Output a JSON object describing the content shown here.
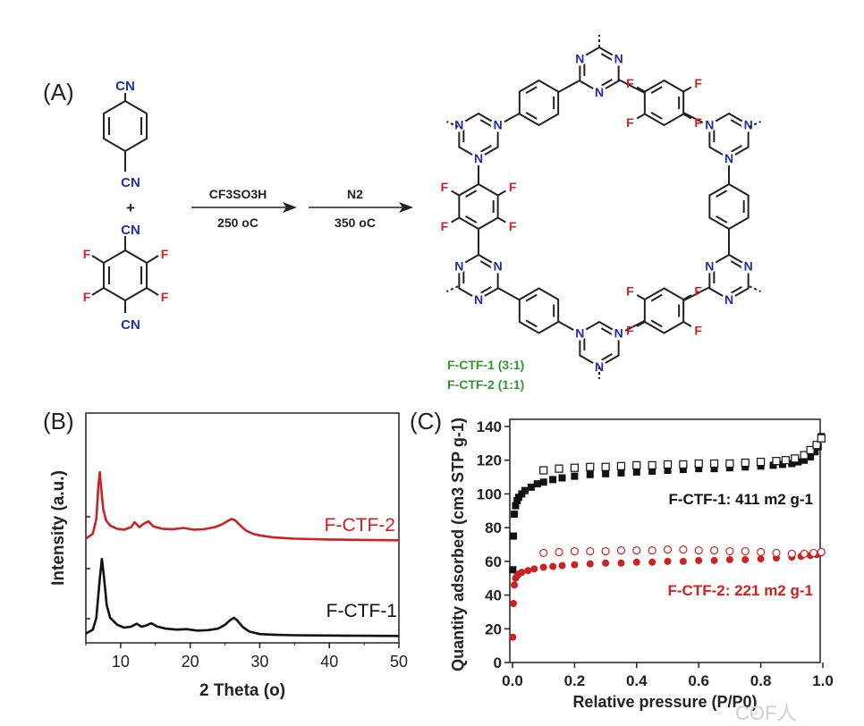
{
  "panels": {
    "a": "(A)",
    "b": "(B)",
    "c": "(C)"
  },
  "scheme": {
    "monomer1_top": "CN",
    "monomer1_bottom": "CN",
    "plus": "+",
    "monomer2_top": "CN",
    "monomer2_bottom": "CN",
    "fluorine": "F",
    "nitrogen": "N",
    "step1_reagent": "CF3SO3H",
    "step1_temp": "250 oC",
    "step2_reagent": "N2",
    "step2_temp": "350 oC",
    "product_label_1": "F-CTF-1 (3:1)",
    "product_label_2": "F-CTF-2 (1:1)",
    "colors": {
      "nitrogen": "#1f2fa8",
      "fluorine": "#d42020",
      "label": "#2e9a2e",
      "bond": "#222222"
    }
  },
  "chart_data": [
    {
      "type": "line",
      "title": "",
      "xlabel": "2 Theta (o)",
      "ylabel": "Intensity (a.u.)",
      "xlim": [
        5,
        50
      ],
      "xticks": [
        10,
        20,
        30,
        40,
        50
      ],
      "series": [
        {
          "name": "F-CTF-2",
          "color": "#cc2222",
          "x": [
            5.0,
            6.0,
            6.5,
            6.8,
            7.0,
            7.2,
            7.5,
            7.9,
            8.5,
            9.5,
            10.5,
            11.5,
            12.0,
            12.7,
            13.3,
            14.0,
            14.7,
            16,
            17.5,
            19,
            20.5,
            22,
            23.5,
            24.5,
            25.5,
            26.0,
            26.5,
            27.2,
            28,
            29,
            30,
            32,
            35,
            40,
            45,
            50
          ],
          "y": [
            56,
            62,
            80,
            120,
            137,
            118,
            92,
            78,
            72,
            68,
            67,
            70,
            76,
            70,
            74,
            77,
            71,
            68,
            67.5,
            69,
            67,
            67.5,
            70,
            73,
            78,
            80,
            78,
            72,
            66,
            62,
            60,
            57.5,
            56,
            55,
            54.5,
            54
          ]
        },
        {
          "name": "F-CTF-1",
          "color": "#111111",
          "x": [
            5.0,
            6.0,
            6.5,
            7.0,
            7.3,
            7.6,
            8.0,
            8.5,
            9.5,
            10.5,
            11.5,
            12.3,
            13.0,
            13.6,
            14.4,
            15.3,
            16.5,
            18,
            19.5,
            21,
            22.5,
            24,
            25,
            25.8,
            26.3,
            26.8,
            27.5,
            28.5,
            30,
            32,
            35,
            40,
            45,
            50
          ],
          "y": [
            4,
            8,
            20,
            60,
            80,
            62,
            33,
            20,
            13,
            10,
            11,
            14,
            11,
            12,
            14.5,
            11,
            9,
            8,
            8.5,
            7,
            7.5,
            9,
            13,
            18,
            20,
            17,
            11,
            6,
            3.5,
            2.8,
            2.3,
            2.0,
            1.7,
            1.5
          ]
        }
      ]
    },
    {
      "type": "scatter",
      "title": "",
      "xlabel": "Relative pressure (P/P0)",
      "ylabel": "Quantity adsorbed (cm3 STP g-1)",
      "xlim": [
        0.0,
        1.0
      ],
      "ylim": [
        0,
        140
      ],
      "xticks": [
        0.0,
        0.2,
        0.4,
        0.6,
        0.8,
        1.0
      ],
      "xtick_labels": [
        "0.0",
        "0.2",
        "0.4",
        "0.6",
        "0.8",
        "1.0"
      ],
      "yticks": [
        0,
        20,
        40,
        60,
        80,
        100,
        120,
        140
      ],
      "annotations": [
        "F-CTF-1: 411 m2 g-1",
        "F-CTF-2: 221 m2 g-1"
      ],
      "series": [
        {
          "name": "F-CTF-1 adsorption",
          "color": "#111111",
          "marker": "filled-square",
          "x": [
            0.001,
            0.003,
            0.006,
            0.01,
            0.015,
            0.02,
            0.03,
            0.04,
            0.06,
            0.08,
            0.1,
            0.13,
            0.16,
            0.2,
            0.25,
            0.3,
            0.35,
            0.4,
            0.45,
            0.5,
            0.55,
            0.6,
            0.65,
            0.7,
            0.75,
            0.8,
            0.84,
            0.87,
            0.9,
            0.92,
            0.94,
            0.96,
            0.975,
            0.985,
            0.995
          ],
          "y": [
            55,
            75,
            88,
            93,
            96,
            98,
            100,
            102,
            104,
            106,
            107,
            108.5,
            109.5,
            110.5,
            111.5,
            112,
            112.5,
            113,
            113.5,
            114,
            114.5,
            115,
            115,
            115.5,
            116,
            116.5,
            117,
            117.5,
            118,
            119,
            120,
            122,
            125,
            128,
            134
          ]
        },
        {
          "name": "F-CTF-1 desorption",
          "color": "#111111",
          "marker": "open-square",
          "x": [
            0.1,
            0.15,
            0.2,
            0.25,
            0.3,
            0.35,
            0.4,
            0.45,
            0.5,
            0.55,
            0.6,
            0.65,
            0.7,
            0.75,
            0.8,
            0.85,
            0.88,
            0.91,
            0.94,
            0.96,
            0.98,
            0.995
          ],
          "y": [
            114,
            115,
            115.5,
            116,
            116,
            116.5,
            117,
            117,
            117.5,
            117.5,
            118,
            118,
            118,
            118.5,
            119,
            119.5,
            120,
            121,
            123,
            126,
            129,
            133
          ]
        },
        {
          "name": "F-CTF-2 adsorption",
          "color": "#cc2222",
          "marker": "filled-circle",
          "x": [
            0.001,
            0.003,
            0.006,
            0.01,
            0.015,
            0.02,
            0.03,
            0.05,
            0.07,
            0.1,
            0.13,
            0.16,
            0.2,
            0.25,
            0.3,
            0.35,
            0.4,
            0.45,
            0.5,
            0.55,
            0.6,
            0.65,
            0.7,
            0.75,
            0.8,
            0.85,
            0.9,
            0.93,
            0.96,
            0.98,
            0.995
          ],
          "y": [
            15,
            35,
            46,
            50,
            51.5,
            52.5,
            53.5,
            54.5,
            55.5,
            56.5,
            57,
            57.5,
            58,
            58.5,
            59,
            59,
            59.5,
            59.5,
            60,
            60,
            60.5,
            60.5,
            61,
            61,
            61.5,
            62,
            62.5,
            63,
            63.5,
            64,
            65
          ]
        },
        {
          "name": "F-CTF-2 desorption",
          "color": "#cc2222",
          "marker": "open-circle",
          "x": [
            0.1,
            0.15,
            0.2,
            0.25,
            0.3,
            0.35,
            0.4,
            0.45,
            0.5,
            0.55,
            0.6,
            0.65,
            0.7,
            0.75,
            0.8,
            0.85,
            0.9,
            0.94,
            0.97,
            0.995
          ],
          "y": [
            65,
            65.5,
            66,
            66,
            66,
            66.5,
            66.5,
            66.5,
            67,
            67,
            66.5,
            66.5,
            66,
            66,
            65.5,
            65,
            64.5,
            64.5,
            65,
            65.5
          ]
        }
      ]
    }
  ],
  "watermark": "COF人"
}
